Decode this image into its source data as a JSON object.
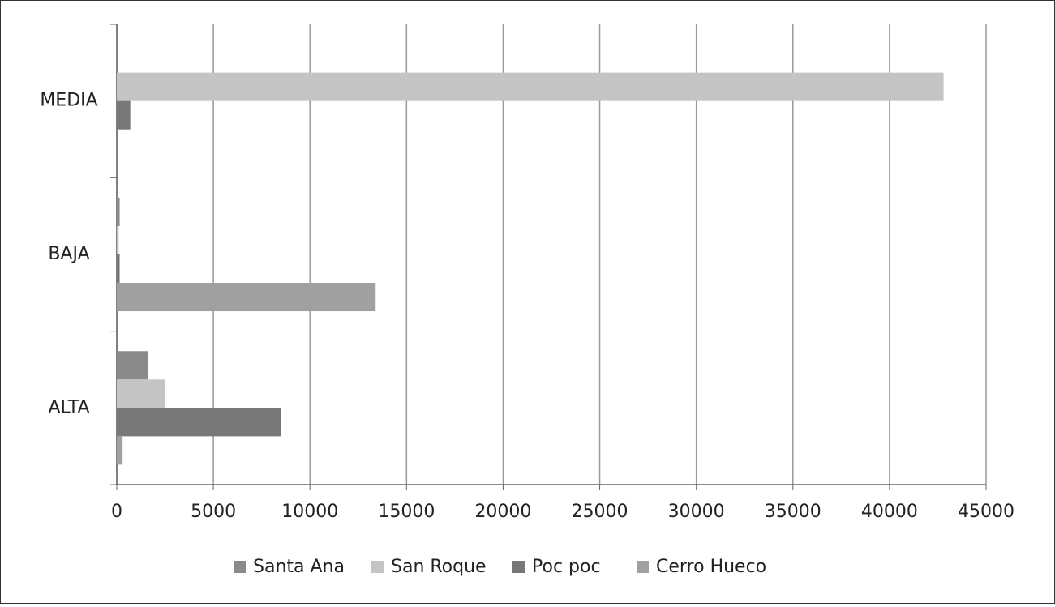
{
  "chart_data": {
    "type": "hbar",
    "categories": [
      "ALTA",
      "BAJA",
      "MEDIA"
    ],
    "series": [
      {
        "name": "Santa Ana",
        "color": "#8a8a8a",
        "values": [
          1600,
          150,
          0
        ]
      },
      {
        "name": "San Roque",
        "color": "#c4c4c4",
        "values": [
          2500,
          100,
          42800
        ]
      },
      {
        "name": "Poc poc",
        "color": "#787878",
        "values": [
          8500,
          150,
          700
        ]
      },
      {
        "name": "Cerro Hueco",
        "color": "#a0a0a0",
        "values": [
          300,
          13400,
          0
        ]
      }
    ],
    "xlim": [
      0,
      45000
    ],
    "xticks": [
      0,
      5000,
      10000,
      15000,
      20000,
      25000,
      30000,
      35000,
      40000,
      45000
    ],
    "grid": true,
    "legend": "bottom"
  }
}
